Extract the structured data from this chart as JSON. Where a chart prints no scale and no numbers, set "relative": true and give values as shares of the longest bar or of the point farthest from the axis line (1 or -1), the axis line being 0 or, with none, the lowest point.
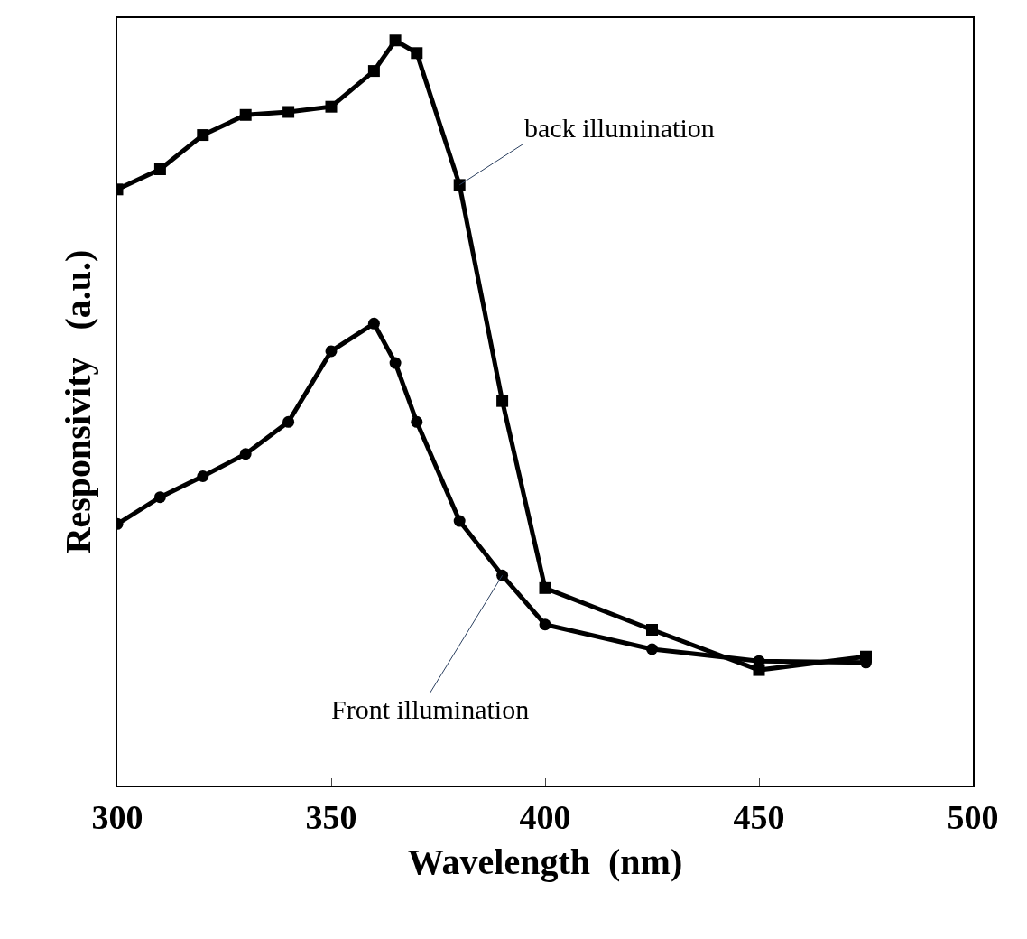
{
  "chart_data": {
    "type": "line",
    "xlabel": "Wavelength  (nm)",
    "ylabel": "Responsivity   (a.u.)",
    "relative": true,
    "xlim": [
      300,
      500
    ],
    "xticks": [
      300,
      350,
      400,
      450,
      500
    ],
    "line_style": "solid",
    "x": [
      300,
      310,
      320,
      330,
      340,
      350,
      360,
      365,
      370,
      380,
      390,
      400,
      425,
      450,
      475
    ],
    "series": [
      {
        "color": "#000000",
        "marker": "square",
        "values": [
          0.8,
          0.827,
          0.873,
          0.9,
          0.904,
          0.911,
          0.959,
          1,
          0.983,
          0.806,
          0.516,
          0.265,
          0.209,
          0.155,
          0.173
        ]
      },
      {
        "color": "#000000",
        "marker": "circle",
        "values": [
          0.351,
          0.387,
          0.415,
          0.445,
          0.488,
          0.583,
          0.62,
          0.567,
          0.488,
          0.355,
          0.282,
          0.216,
          0.183,
          0.167,
          0.165
        ]
      }
    ],
    "annotations": [
      {
        "text": "back illumination",
        "x": 380,
        "y": 0.806
      },
      {
        "text": "Front illumination",
        "x": 390,
        "y": 0.282
      }
    ]
  }
}
